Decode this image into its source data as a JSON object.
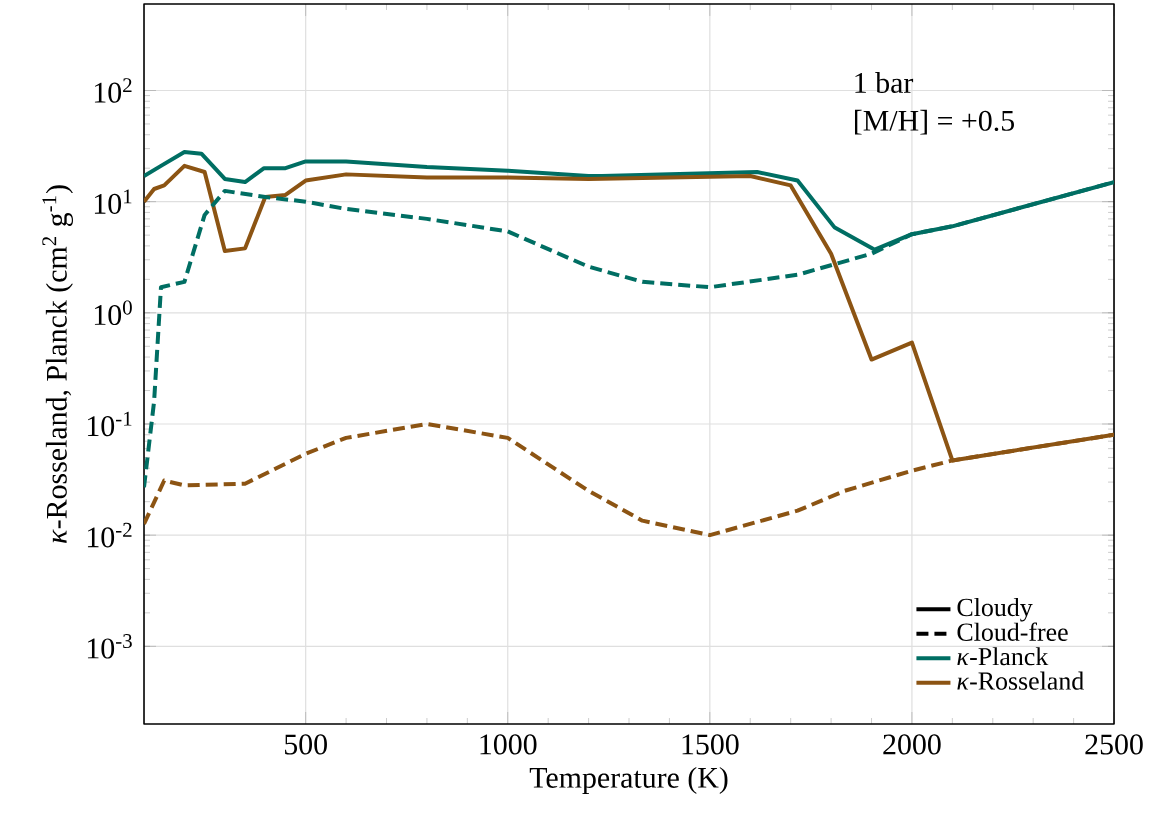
{
  "chart_data": {
    "type": "line",
    "xlabel": "Temperature (K)",
    "ylabel": "*κ*-Rosseland, Planck (cm$^{2}$ g$^{-1}$)",
    "log": "y",
    "grid": true,
    "legend": "bottom right",
    "marker": "none",
    "xlim": [
      100,
      2500
    ],
    "xticks": [
      500,
      1000,
      1500,
      2000,
      2500
    ],
    "ylim": [
      0.0002,
      600
    ],
    "yticks": [
      {
        "value": 0.001,
        "label": "10$^{-3}$"
      },
      {
        "value": 0.01,
        "label": "10$^{-2}$"
      },
      {
        "value": 0.1,
        "label": "10$^{-1}$"
      },
      {
        "value": 1,
        "label": "10$^{0}$"
      },
      {
        "value": 10,
        "label": "10$^{1}$"
      },
      {
        "value": 100,
        "label": "10$^{2}$"
      }
    ],
    "annotations": [
      "1 bar",
      "[M/H] = +0.5",
      "Cloudy",
      "Cloud-free"
    ],
    "series": [
      {
        "name": "*κ*-Planck",
        "color": "#006e63",
        "line_style": "solid",
        "x": [
          100,
          142,
          200,
          242,
          300,
          350,
          397,
          450,
          500,
          600,
          800,
          1000,
          1200,
          1233,
          1617,
          1717,
          1808,
          1908,
          2000,
          2100,
          2500
        ],
        "values": [
          17,
          21,
          28,
          27,
          16,
          15,
          20,
          20,
          23,
          23,
          20.5,
          19,
          17,
          17,
          18.5,
          15.5,
          5.9,
          3.7,
          5.1,
          6,
          15
        ]
      },
      {
        "name": "*κ*-Rosseland",
        "color": "#8c5413",
        "line_style": "solid",
        "x": [
          100,
          125,
          150,
          200,
          250,
          300,
          350,
          400,
          450,
          500,
          600,
          800,
          1000,
          1200,
          1600,
          1700,
          1800,
          1900,
          2000,
          2100,
          2500
        ],
        "values": [
          10,
          13,
          14,
          21,
          18.5,
          3.6,
          3.8,
          11,
          11.5,
          15.5,
          17.6,
          16.5,
          16.5,
          16,
          17,
          14,
          3.4,
          0.38,
          0.54,
          0.047,
          0.08
        ]
      },
      {
        "color": "#006e63",
        "line_style": "dashed",
        "x": [
          100,
          125,
          142,
          200,
          250,
          300,
          400,
          500,
          600,
          800,
          1000,
          1200,
          1333,
          1500,
          1717,
          1900,
          2000,
          2100,
          2500
        ],
        "values": [
          0.027,
          0.16,
          1.7,
          1.9,
          7.6,
          12.5,
          11,
          10,
          8.6,
          7,
          5.4,
          2.6,
          1.9,
          1.7,
          2.2,
          3.4,
          5.1,
          6,
          15
        ]
      },
      {
        "color": "#8c5413",
        "line_style": "dashed",
        "x": [
          100,
          150,
          200,
          350,
          500,
          600,
          800,
          1000,
          1200,
          1333,
          1500,
          1717,
          1833,
          2000,
          2100,
          2500
        ],
        "values": [
          0.0126,
          0.031,
          0.028,
          0.029,
          0.054,
          0.075,
          0.1,
          0.075,
          0.025,
          0.0135,
          0.01,
          0.0166,
          0.025,
          0.038,
          0.047,
          0.08
        ]
      }
    ]
  }
}
